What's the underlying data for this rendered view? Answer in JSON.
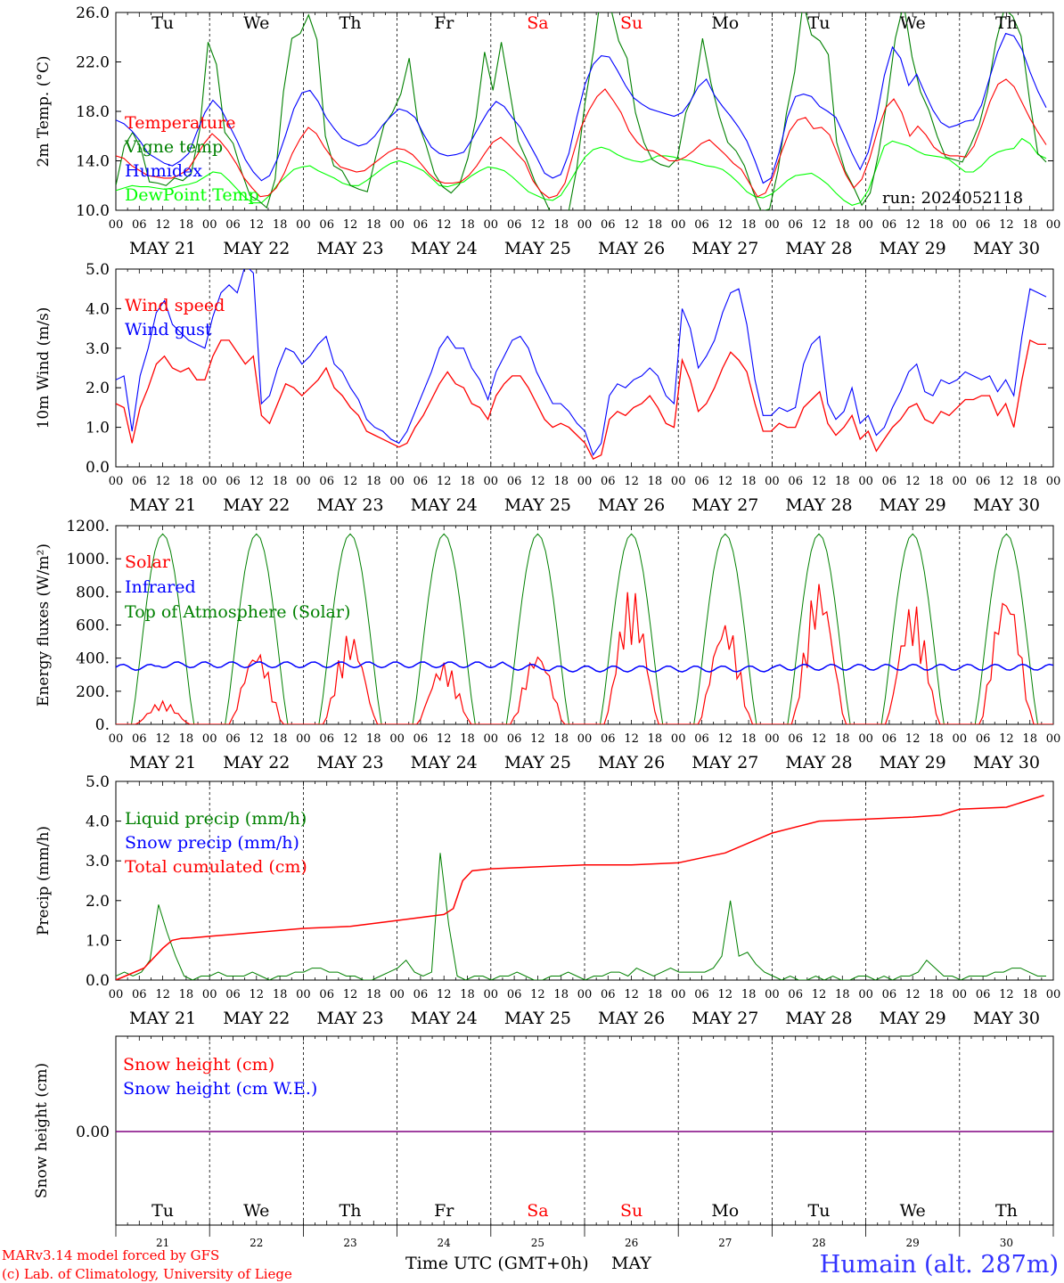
{
  "chart_data": [
    {
      "type": "line",
      "ylabel": "2m Temp. (°C)",
      "ylim": [
        10.0,
        26.0
      ],
      "yticks": [
        "10.0",
        "14.0",
        "18.0",
        "22.0",
        "26.0"
      ],
      "run_label": "run: 2024052118",
      "series": [
        {
          "name": "Temperature",
          "color": "#ff0000",
          "values": [
            14.4,
            14.2,
            13.6,
            13.2,
            12.8,
            12.7,
            12.6,
            12.6,
            12.9,
            13.3,
            14.3,
            15.4,
            16.2,
            15.6,
            14.8,
            13.8,
            12.6,
            11.8,
            11.1,
            11.2,
            11.8,
            13.0,
            14.6,
            15.8,
            16.7,
            16.2,
            15.1,
            14.2,
            13.5,
            13.3,
            13.1,
            13.2,
            13.7,
            14.2,
            14.7,
            15.0,
            14.9,
            14.5,
            13.8,
            13.0,
            12.4,
            12.2,
            12.2,
            12.3,
            12.8,
            13.6,
            14.6,
            15.5,
            15.9,
            15.3,
            14.6,
            13.9,
            12.4,
            11.5,
            11.0,
            11.2,
            12.2,
            14.5,
            16.7,
            18.1,
            19.2,
            19.8,
            18.9,
            17.9,
            16.4,
            15.5,
            14.9,
            14.8,
            14.4,
            14.0,
            14.0,
            14.3,
            14.8,
            15.4,
            15.7,
            15.1,
            14.5,
            13.8,
            13.3,
            12.2,
            11.1,
            11.4,
            12.8,
            14.7,
            16.4,
            17.3,
            17.5,
            16.6,
            16.7,
            16.1,
            14.5,
            12.9,
            11.8,
            12.5,
            14.2,
            16.5,
            18.3,
            19.0,
            17.9,
            16.0,
            16.8,
            16.1,
            15.1,
            14.6,
            14.4,
            14.4,
            14.3,
            15.2,
            16.9,
            18.8,
            20.2,
            20.6,
            20.0,
            18.7,
            17.4,
            16.3,
            15.3
          ]
        },
        {
          "name": "Vigne temp",
          "color": "#008000",
          "values": [
            12.0,
            15.2,
            16.3,
            15.0,
            12.3,
            12.2,
            12.0,
            12.6,
            12.4,
            13.0,
            16.5,
            23.6,
            21.8,
            16.3,
            15.4,
            13.1,
            11.2,
            10.8,
            10.2,
            12.5,
            19.6,
            23.9,
            24.3,
            25.8,
            23.8,
            16.0,
            13.6,
            13.2,
            12.0,
            11.7,
            11.5,
            14.3,
            16.9,
            17.9,
            19.4,
            22.3,
            17.2,
            15.3,
            13.0,
            11.9,
            11.4,
            12.1,
            14.2,
            17.5,
            22.8,
            19.7,
            23.6,
            19.6,
            15.6,
            14.1,
            12.3,
            11.1,
            9.6,
            9.0,
            9.8,
            13.4,
            18.8,
            22.9,
            28.2,
            26.5,
            23.7,
            22.3,
            17.9,
            15.5,
            14.1,
            13.7,
            13.5,
            14.2,
            17.9,
            19.5,
            23.9,
            20.3,
            17.6,
            15.5,
            14.8,
            13.6,
            11.6,
            9.9,
            10.1,
            13.2,
            17.8,
            21.2,
            26.8,
            24.2,
            23.7,
            22.6,
            15.5,
            13.2,
            11.9,
            10.4,
            11.4,
            14.6,
            18.8,
            23.9,
            26.7,
            22.4,
            19.6,
            18.1,
            16.0,
            14.3,
            14.1,
            13.9,
            15.3,
            16.9,
            19.6,
            23.6,
            26.3,
            25.7,
            24.1,
            19.0,
            14.6,
            13.9
          ]
        },
        {
          "name": "Humidex",
          "color": "#0000ff",
          "values": [
            17.3,
            17.0,
            16.4,
            15.6,
            14.6,
            14.2,
            13.8,
            13.6,
            14.0,
            14.6,
            16.3,
            17.9,
            18.9,
            18.2,
            16.9,
            15.6,
            14.1,
            13.1,
            12.4,
            12.8,
            14.2,
            16.1,
            18.2,
            19.5,
            19.7,
            18.8,
            17.5,
            16.6,
            15.8,
            15.5,
            15.2,
            15.4,
            16.0,
            16.9,
            17.6,
            18.2,
            18.0,
            17.5,
            16.2,
            15.1,
            14.6,
            14.4,
            14.5,
            14.7,
            15.7,
            16.9,
            18.0,
            18.8,
            18.4,
            17.5,
            16.7,
            15.5,
            14.3,
            13.0,
            12.6,
            12.9,
            14.6,
            17.6,
            20.2,
            21.8,
            22.5,
            22.4,
            21.3,
            20.1,
            19.1,
            18.6,
            18.2,
            18.0,
            17.8,
            17.6,
            17.9,
            18.8,
            20.0,
            20.6,
            19.3,
            18.4,
            17.6,
            16.7,
            15.6,
            14.0,
            12.2,
            12.6,
            14.7,
            17.5,
            19.2,
            19.4,
            19.2,
            18.4,
            18.0,
            17.5,
            16.1,
            14.6,
            13.3,
            14.7,
            17.4,
            20.9,
            23.2,
            22.3,
            20.1,
            21.0,
            19.5,
            18.1,
            17.1,
            16.7,
            16.9,
            17.2,
            17.3,
            18.5,
            20.7,
            22.8,
            24.3,
            24.1,
            23.0,
            21.2,
            19.6,
            18.3
          ]
        },
        {
          "name": "DewPoint Temp",
          "color": "#00ff00",
          "values": [
            11.6,
            11.8,
            12.0,
            11.9,
            11.9,
            11.8,
            11.7,
            11.8,
            12.0,
            12.1,
            12.3,
            12.7,
            13.1,
            13.0,
            12.4,
            11.7,
            11.0,
            10.6,
            10.6,
            11.2,
            12.1,
            12.7,
            13.3,
            13.5,
            13.6,
            13.2,
            12.9,
            12.6,
            12.2,
            12.0,
            12.0,
            12.4,
            12.9,
            13.4,
            13.8,
            14.0,
            13.8,
            13.5,
            13.2,
            12.6,
            12.0,
            11.9,
            12.1,
            12.3,
            12.8,
            13.2,
            13.5,
            13.4,
            13.2,
            12.7,
            12.1,
            11.5,
            11.2,
            10.9,
            10.8,
            11.2,
            12.2,
            13.3,
            14.3,
            14.9,
            15.1,
            14.9,
            14.5,
            14.2,
            14.0,
            13.9,
            14.1,
            14.4,
            14.4,
            14.3,
            14.1,
            14.0,
            13.8,
            13.6,
            13.5,
            13.3,
            12.8,
            12.2,
            11.5,
            11.1,
            11.0,
            11.3,
            11.8,
            12.4,
            12.8,
            12.9,
            13.0,
            12.6,
            12.1,
            11.4,
            10.8,
            10.4,
            10.6,
            11.6,
            13.4,
            15.2,
            15.6,
            15.4,
            15.2,
            14.8,
            14.5,
            14.4,
            14.3,
            14.1,
            13.6,
            13.1,
            13.1,
            13.6,
            14.3,
            14.7,
            14.9,
            15.0,
            15.8,
            15.4,
            14.5,
            14.2
          ]
        }
      ]
    },
    {
      "type": "line",
      "ylabel": "10m Wind (m/s)",
      "ylim": [
        0.0,
        5.0
      ],
      "yticks": [
        "0.0",
        "1.0",
        "2.0",
        "3.0",
        "4.0",
        "5.0"
      ],
      "series": [
        {
          "name": "Wind speed",
          "color": "#ff0000",
          "values": [
            1.6,
            1.5,
            0.6,
            1.5,
            2.0,
            2.6,
            2.8,
            2.5,
            2.4,
            2.5,
            2.2,
            2.2,
            2.8,
            3.2,
            3.2,
            2.9,
            2.6,
            2.8,
            1.3,
            1.1,
            1.6,
            2.1,
            2.0,
            1.8,
            2.0,
            2.2,
            2.5,
            2.0,
            1.8,
            1.5,
            1.3,
            0.9,
            0.8,
            0.7,
            0.6,
            0.5,
            0.6,
            1.0,
            1.3,
            1.7,
            2.1,
            2.4,
            2.1,
            2.0,
            1.6,
            1.5,
            1.2,
            1.8,
            2.1,
            2.3,
            2.3,
            2.0,
            1.6,
            1.2,
            1.0,
            1.1,
            1.0,
            0.8,
            0.6,
            0.2,
            0.3,
            1.2,
            1.4,
            1.3,
            1.5,
            1.6,
            1.8,
            1.5,
            1.1,
            1.0,
            2.7,
            2.2,
            1.4,
            1.6,
            2.0,
            2.5,
            2.9,
            2.7,
            2.4,
            1.6,
            0.9,
            0.9,
            1.1,
            1.0,
            1.0,
            1.5,
            1.7,
            1.9,
            1.1,
            0.8,
            1.0,
            1.3,
            0.7,
            0.9,
            0.4,
            0.7,
            1.0,
            1.2,
            1.5,
            1.6,
            1.2,
            1.1,
            1.4,
            1.3,
            1.5,
            1.7,
            1.7,
            1.8,
            1.8,
            1.3,
            1.6,
            1.0,
            2.2,
            3.2,
            3.1,
            3.1
          ]
        },
        {
          "name": "Wind gust",
          "color": "#0000ff",
          "values": [
            2.2,
            2.3,
            0.9,
            2.3,
            3.0,
            3.9,
            4.2,
            3.6,
            3.4,
            3.2,
            3.1,
            3.0,
            3.8,
            4.4,
            4.6,
            4.4,
            5.1,
            4.9,
            1.6,
            1.8,
            2.5,
            3.0,
            2.9,
            2.6,
            2.8,
            3.1,
            3.3,
            2.6,
            2.4,
            2.0,
            1.7,
            1.2,
            1.0,
            0.9,
            0.7,
            0.6,
            0.9,
            1.4,
            1.9,
            2.4,
            3.0,
            3.3,
            3.0,
            3.0,
            2.5,
            2.2,
            1.7,
            2.4,
            2.8,
            3.2,
            3.3,
            3.0,
            2.4,
            2.0,
            1.6,
            1.6,
            1.4,
            1.1,
            0.9,
            0.3,
            0.6,
            1.8,
            2.1,
            2.0,
            2.2,
            2.3,
            2.5,
            2.3,
            1.8,
            1.6,
            4.0,
            3.5,
            2.5,
            2.8,
            3.2,
            3.9,
            4.4,
            4.5,
            3.6,
            2.2,
            1.3,
            1.3,
            1.5,
            1.4,
            1.5,
            2.6,
            3.1,
            3.3,
            1.6,
            1.2,
            1.4,
            2.0,
            1.1,
            1.3,
            0.8,
            1.0,
            1.5,
            1.9,
            2.4,
            2.6,
            1.9,
            1.8,
            2.2,
            2.1,
            2.2,
            2.4,
            2.3,
            2.2,
            2.3,
            1.9,
            2.2,
            1.8,
            3.3,
            4.5,
            4.4,
            4.3
          ]
        }
      ]
    },
    {
      "type": "line",
      "ylabel": "Energy fluxes (W/m²)",
      "ylim": [
        0,
        1200
      ],
      "yticks": [
        "0.",
        "200.",
        "400.",
        "600.",
        "800.",
        "1000.",
        "1200."
      ],
      "series": [
        {
          "name": "Solar",
          "color": "#ff0000",
          "day_peaks": [
            140,
            460,
            560,
            380,
            450,
            830,
            640,
            880,
            740,
            830
          ]
        },
        {
          "name": "Infrared",
          "color": "#0000ff",
          "level": 345
        },
        {
          "name": "Top of Atmosphere (Solar)",
          "color": "#008000",
          "peak": 1150
        }
      ]
    },
    {
      "type": "line",
      "ylabel": "Precip (mm/h)",
      "ylim": [
        0.0,
        5.0
      ],
      "yticks": [
        "0.0",
        "1.0",
        "2.0",
        "3.0",
        "4.0",
        "5.0"
      ],
      "series": [
        {
          "name": "Liquid precip (mm/h)",
          "color": "#008000",
          "values": [
            0.1,
            0.2,
            0.1,
            0.2,
            0.5,
            1.9,
            1.2,
            0.6,
            0.1,
            0.0,
            0.1,
            0.1,
            0.2,
            0.1,
            0.1,
            0.1,
            0.2,
            0.1,
            0.0,
            0.1,
            0.1,
            0.2,
            0.2,
            0.3,
            0.3,
            0.2,
            0.2,
            0.1,
            0.1,
            0.0,
            0.0,
            0.1,
            0.2,
            0.3,
            0.5,
            0.2,
            0.1,
            0.2,
            3.2,
            1.4,
            0.1,
            0.0,
            0.1,
            0.1,
            0.0,
            0.1,
            0.1,
            0.2,
            0.1,
            0.0,
            0.0,
            0.1,
            0.1,
            0.2,
            0.1,
            0.0,
            0.1,
            0.1,
            0.2,
            0.2,
            0.1,
            0.3,
            0.2,
            0.1,
            0.2,
            0.3,
            0.2,
            0.2,
            0.2,
            0.2,
            0.3,
            0.6,
            2.0,
            0.6,
            0.7,
            0.4,
            0.2,
            0.1,
            0.0,
            0.1,
            0.0,
            0.0,
            0.1,
            0.0,
            0.1,
            0.0,
            0.0,
            0.1,
            0.1,
            0.0,
            0.1,
            0.0,
            0.1,
            0.1,
            0.2,
            0.5,
            0.3,
            0.1,
            0.1,
            0.0,
            0.1,
            0.1,
            0.1,
            0.2,
            0.2,
            0.3,
            0.3,
            0.2,
            0.1,
            0.1
          ]
        },
        {
          "name": "Snow precip (mm/h)",
          "color": "#0000ff",
          "values": []
        },
        {
          "name": "Total cumulated (cm)",
          "color": "#ff0000",
          "x_days": [
            0.0,
            0.3,
            0.5,
            0.6,
            0.7,
            0.8,
            1.0,
            1.5,
            2.0,
            2.5,
            3.0,
            3.5,
            3.6,
            3.7,
            3.8,
            4.0,
            4.5,
            5.0,
            5.5,
            6.0,
            6.3,
            6.5,
            6.9,
            7.0,
            7.5,
            8.0,
            8.5,
            8.8,
            9.0,
            9.5,
            9.9
          ],
          "values": [
            0.0,
            0.3,
            0.8,
            1.0,
            1.05,
            1.06,
            1.1,
            1.2,
            1.3,
            1.35,
            1.5,
            1.65,
            1.8,
            2.5,
            2.75,
            2.8,
            2.85,
            2.9,
            2.9,
            2.95,
            3.1,
            3.2,
            3.6,
            3.7,
            4.0,
            4.05,
            4.1,
            4.15,
            4.3,
            4.35,
            4.65
          ]
        }
      ]
    },
    {
      "type": "line",
      "ylabel": "Snow height (cm)",
      "yticks": [
        "0.00"
      ],
      "series": [
        {
          "name": "Snow height (cm)",
          "color": "#ff0000",
          "values": [
            0.0
          ]
        },
        {
          "name": "Snow height (cm W.E.)",
          "color": "#0000ff",
          "values": [
            0.0
          ]
        }
      ]
    }
  ],
  "x_axis": {
    "hour_ticks": [
      "00",
      "06",
      "12",
      "18"
    ],
    "end_tick": "00",
    "date_labels": [
      "MAY 21",
      "MAY 22",
      "MAY 23",
      "MAY 24",
      "MAY 25",
      "MAY 26",
      "MAY 27",
      "MAY 28",
      "MAY 29",
      "MAY 30"
    ],
    "weekdays": [
      "Tu",
      "We",
      "Th",
      "Fr",
      "Sa",
      "Su",
      "Mo",
      "Tu",
      "We",
      "Th"
    ],
    "weekend_color": "#ff0000",
    "day_numbers": [
      "21",
      "22",
      "23",
      "24",
      "25",
      "26",
      "27",
      "28",
      "29",
      "30"
    ],
    "xlabel": "Time UTC (GMT+0h)",
    "month": "MAY"
  },
  "footer": {
    "credit1": "MARv3.14 model forced by GFS",
    "credit2": "(c) Lab. of Climatology, University of Liege",
    "station": "Humain (alt. 287m)"
  }
}
